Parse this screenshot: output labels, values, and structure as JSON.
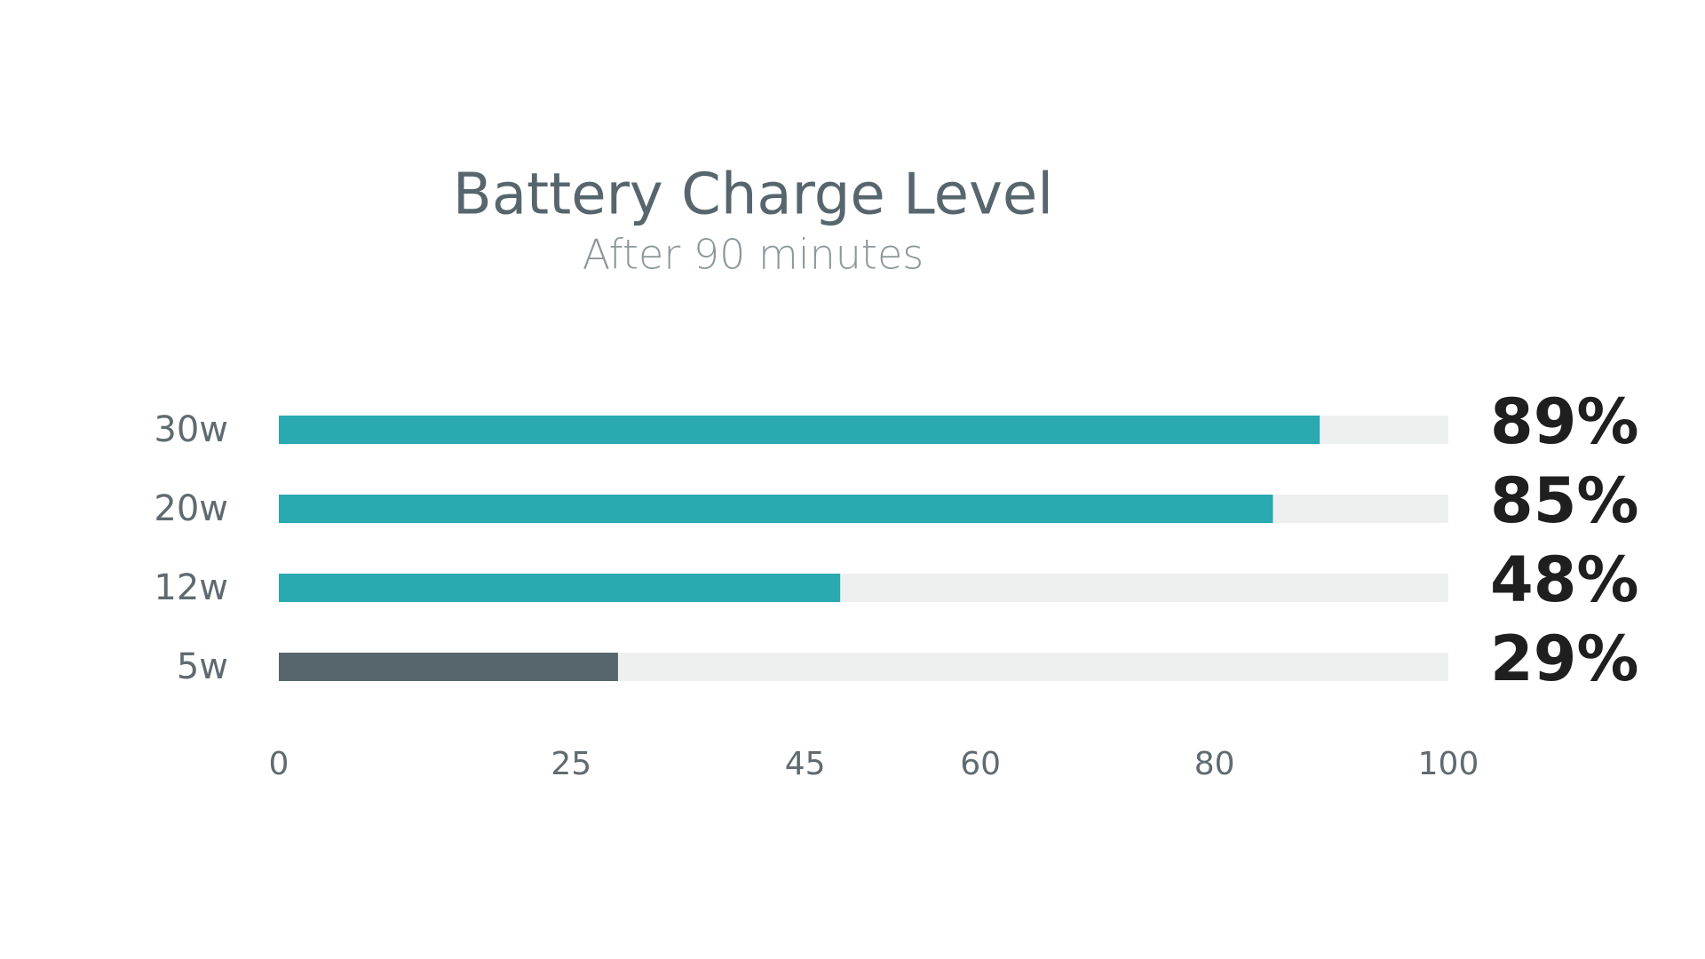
{
  "chart_data": {
    "type": "bar",
    "orientation": "horizontal",
    "title": "Battery Charge Level",
    "subtitle": "After 90 minutes",
    "categories": [
      "30w",
      "20w",
      "12w",
      "5w"
    ],
    "values": [
      89,
      85,
      48,
      29
    ],
    "value_labels": [
      "89%",
      "85%",
      "48%",
      "29%"
    ],
    "colors": [
      "#2aa9b0",
      "#2aa9b0",
      "#2aa9b0",
      "#56666c"
    ],
    "track_color": "#eef0ef",
    "xlim": [
      0,
      100
    ],
    "xticks": [
      0,
      25,
      45,
      60,
      80,
      100
    ],
    "grid": false
  }
}
